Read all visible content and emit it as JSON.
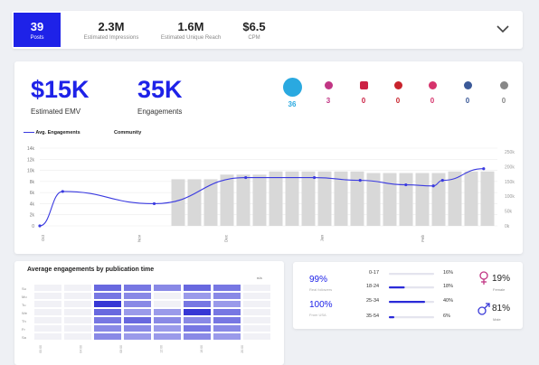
{
  "top_bar": {
    "stats": [
      {
        "value": "39",
        "label": "Posts"
      },
      {
        "value": "2.3M",
        "label": "Estimated Impressions"
      },
      {
        "value": "1.6M",
        "label": "Estimated Unique Reach"
      },
      {
        "value": "$6.5",
        "label": "CPM"
      }
    ],
    "expand_icon": "chevron-down-icon"
  },
  "summary": {
    "emv_value": "$15K",
    "emv_label": "Estimated EMV",
    "engagements_value": "35K",
    "engagements_label": "Engagements"
  },
  "social_counts": [
    {
      "network": "twitter",
      "icon": "twitter-icon",
      "count": "36",
      "color": "#2aa9e0"
    },
    {
      "network": "instagram",
      "icon": "instagram-icon",
      "count": "3",
      "color": "#c13584"
    },
    {
      "network": "youtube",
      "icon": "youtube-icon",
      "count": "0",
      "color": "#cc2244"
    },
    {
      "network": "pinterest",
      "icon": "pinterest-icon",
      "count": "0",
      "color": "#c8232c"
    },
    {
      "network": "instagram-story",
      "icon": "instagram-story-icon",
      "count": "0",
      "color": "#d6336c"
    },
    {
      "network": "facebook",
      "icon": "facebook-icon",
      "count": "0",
      "color": "#3b5998"
    },
    {
      "network": "other",
      "icon": "other-icon",
      "count": "0",
      "color": "#888888"
    }
  ],
  "chart_data": {
    "type": "line",
    "legend": [
      "Avg. Engagements",
      "Community"
    ],
    "legend_placement": "top-left",
    "y_left_ticks": [
      "14k",
      "12k",
      "10k",
      "8k",
      "6k",
      "4k",
      "2k",
      "0"
    ],
    "y_right_ticks": [
      "250k",
      "200k",
      "150k",
      "100k",
      "50k",
      "0k"
    ],
    "x_ticks": [
      "Oct",
      "Nov",
      "Dec",
      "Jan",
      "Feb"
    ],
    "line_series": {
      "name": "Avg. Engagements",
      "color": "#3a3ae0",
      "points": [
        [
          0,
          0
        ],
        [
          0.05,
          6200
        ],
        [
          0.25,
          4000
        ],
        [
          0.45,
          8700
        ],
        [
          0.6,
          8700
        ],
        [
          0.7,
          8200
        ],
        [
          0.8,
          7400
        ],
        [
          0.86,
          7200
        ],
        [
          0.88,
          8200
        ],
        [
          0.97,
          10300
        ]
      ]
    },
    "bar_series": {
      "name": "Community",
      "color": "#d8d8d8",
      "values": [
        150000,
        150000,
        150000,
        165000,
        165000,
        165000,
        175000,
        175000,
        175000,
        175000,
        175000,
        175000,
        170000,
        170000,
        170000,
        170000,
        170000,
        175000,
        175000,
        175000
      ],
      "range": [
        0,
        250000
      ]
    },
    "grid": true
  },
  "heatmap": {
    "title": "Average engagements by publication time",
    "corner_label": "n/a",
    "row_labels": [
      "Su",
      "Mo",
      "Tu",
      "We",
      "Th",
      "Fr",
      "Sa"
    ],
    "col_labels": [
      "00:00",
      "04:00",
      "08:00",
      "12:00",
      "16:00",
      "20:00"
    ],
    "intensity": [
      [
        0,
        0,
        0.6,
        0.5,
        0.4,
        0.6,
        0.5,
        0
      ],
      [
        0,
        0,
        0.5,
        0.4,
        0,
        0.3,
        0.4,
        0
      ],
      [
        0,
        0,
        0.9,
        0.4,
        0,
        0.5,
        0.3,
        0
      ],
      [
        0,
        0,
        0.6,
        0.3,
        0.3,
        0.9,
        0.5,
        0
      ],
      [
        0,
        0,
        0.5,
        0.6,
        0.4,
        0.4,
        0.5,
        0
      ],
      [
        0,
        0,
        0.4,
        0.4,
        0.3,
        0.5,
        0.4,
        0
      ],
      [
        0,
        0,
        0.4,
        0.3,
        0.3,
        0.4,
        0.3,
        0
      ]
    ]
  },
  "audience": {
    "stat1_value": "99%",
    "stat1_label": "Real followers",
    "stat2_value": "100%",
    "stat2_label": "From USA",
    "age_groups": [
      {
        "label": "0-17",
        "percent": "16%",
        "fill": 0.0
      },
      {
        "label": "18-24",
        "percent": "18%",
        "fill": 0.35
      },
      {
        "label": "25-34",
        "percent": "40%",
        "fill": 0.8
      },
      {
        "label": "35-54",
        "percent": "6%",
        "fill": 0.12
      }
    ],
    "female_value": "19%",
    "female_label": "Female",
    "male_value": "81%",
    "male_label": "Male"
  }
}
